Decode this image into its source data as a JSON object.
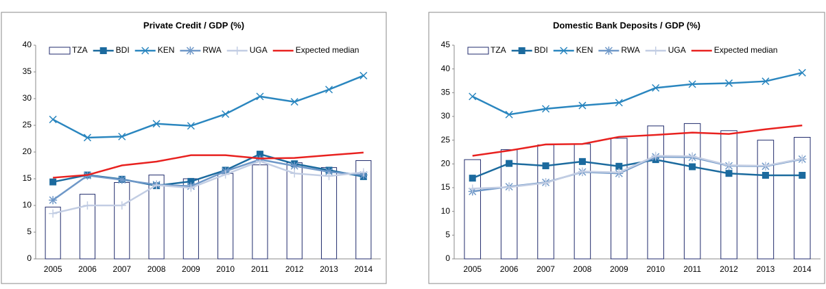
{
  "chart_data": [
    {
      "type": "bar-line",
      "title": "Private Credit / GDP (%)",
      "categories": [
        "2005",
        "2006",
        "2007",
        "2008",
        "2009",
        "2010",
        "2011",
        "2012",
        "2013",
        "2014"
      ],
      "ylim": [
        0,
        40
      ],
      "yticks": [
        0,
        5,
        10,
        15,
        20,
        25,
        30,
        35,
        40
      ],
      "series": [
        {
          "name": "TZA",
          "kind": "bar",
          "color": "#1f2a6b",
          "values": [
            9.7,
            12.1,
            14.3,
            15.7,
            15.0,
            16.0,
            17.6,
            18.0,
            17.1,
            18.4
          ]
        },
        {
          "name": "BDI",
          "kind": "line",
          "marker": "square",
          "color": "#1b6a9e",
          "values": [
            14.4,
            15.7,
            14.9,
            13.7,
            14.5,
            16.6,
            19.6,
            17.8,
            16.6,
            15.4
          ]
        },
        {
          "name": "KEN",
          "kind": "line",
          "marker": "x",
          "color": "#2a86bf",
          "values": [
            26.1,
            22.7,
            22.9,
            25.3,
            24.9,
            27.1,
            30.4,
            29.4,
            31.7,
            34.3
          ]
        },
        {
          "name": "RWA",
          "kind": "line",
          "marker": "star",
          "color": "#6f98c8",
          "values": [
            11.0,
            15.6,
            14.8,
            13.9,
            13.6,
            16.4,
            18.6,
            17.4,
            16.3,
            15.7
          ]
        },
        {
          "name": "UGA",
          "kind": "line",
          "marker": "plus",
          "color": "#c2cde3",
          "values": [
            8.5,
            10.0,
            10.0,
            13.8,
            13.3,
            15.8,
            18.3,
            16.0,
            15.5,
            16.2
          ]
        },
        {
          "name": "Expected median",
          "kind": "line",
          "marker": "none",
          "color": "#e8211f",
          "values": [
            15.2,
            15.7,
            17.5,
            18.2,
            19.4,
            19.4,
            18.8,
            18.9,
            19.4,
            19.9
          ]
        }
      ]
    },
    {
      "type": "bar-line",
      "title": "Domestic Bank Deposits / GDP (%)",
      "categories": [
        "2005",
        "2006",
        "2007",
        "2008",
        "2009",
        "2010",
        "2011",
        "2012",
        "2013",
        "2014"
      ],
      "ylim": [
        0,
        45
      ],
      "yticks": [
        0,
        5,
        10,
        15,
        20,
        25,
        30,
        35,
        40,
        45
      ],
      "series": [
        {
          "name": "TZA",
          "kind": "bar",
          "color": "#1f2a6b",
          "values": [
            20.9,
            23.0,
            24.0,
            24.2,
            25.4,
            28.0,
            28.5,
            27.0,
            25.0,
            25.6
          ]
        },
        {
          "name": "BDI",
          "kind": "line",
          "marker": "square",
          "color": "#1b6a9e",
          "values": [
            17.0,
            20.1,
            19.6,
            20.5,
            19.5,
            20.9,
            19.4,
            18.0,
            17.6,
            17.6
          ]
        },
        {
          "name": "KEN",
          "kind": "line",
          "marker": "x",
          "color": "#2a86bf",
          "values": [
            34.2,
            30.4,
            31.6,
            32.3,
            32.9,
            36.0,
            36.8,
            37.0,
            37.4,
            39.2
          ]
        },
        {
          "name": "RWA",
          "kind": "line",
          "marker": "star",
          "color": "#6f98c8",
          "values": [
            14.2,
            15.2,
            16.1,
            18.3,
            18.0,
            21.5,
            21.4,
            19.6,
            19.5,
            21.0
          ]
        },
        {
          "name": "UGA",
          "kind": "line",
          "marker": "plus",
          "color": "#c2cde3",
          "values": [
            14.8,
            15.1,
            16.0,
            18.4,
            18.2,
            21.7,
            21.6,
            19.7,
            19.6,
            21.1
          ]
        },
        {
          "name": "Expected median",
          "kind": "line",
          "marker": "none",
          "color": "#e8211f",
          "values": [
            21.7,
            22.8,
            24.1,
            24.2,
            25.7,
            26.1,
            26.6,
            26.3,
            27.3,
            28.1
          ]
        }
      ]
    }
  ]
}
